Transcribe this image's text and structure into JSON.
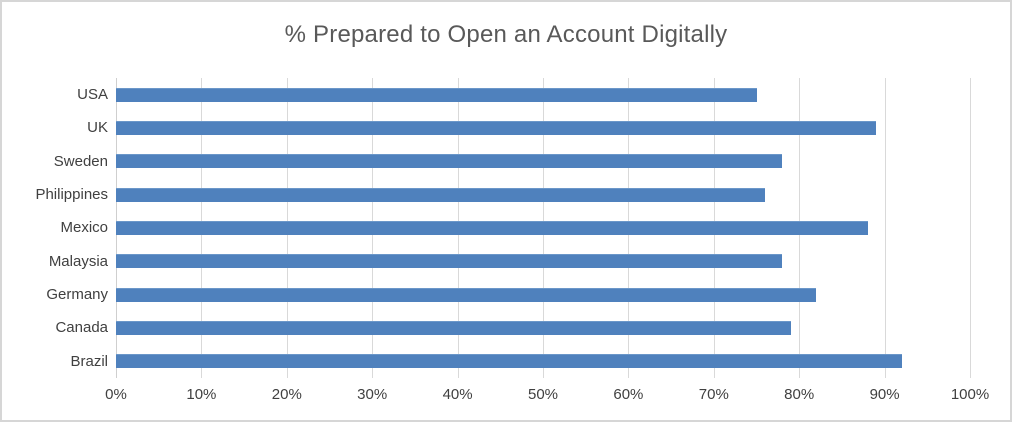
{
  "chart_data": {
    "type": "bar",
    "orientation": "horizontal",
    "title": "% Prepared to Open an Account Digitally",
    "categories": [
      "USA",
      "UK",
      "Sweden",
      "Philippines",
      "Mexico",
      "Malaysia",
      "Germany",
      "Canada",
      "Brazil"
    ],
    "values": [
      75,
      89,
      78,
      76,
      88,
      78,
      82,
      79,
      92
    ],
    "xlabel": "",
    "ylabel": "",
    "xlim": [
      0,
      100
    ],
    "x_tick_step": 10,
    "x_tick_labels": [
      "0%",
      "10%",
      "20%",
      "30%",
      "40%",
      "50%",
      "60%",
      "70%",
      "80%",
      "90%",
      "100%"
    ],
    "grid": "vertical",
    "legend": "none",
    "colors": {
      "bar": "#4f81bd",
      "bar_highlight": "#6b97c9",
      "gridline": "#d9d9d9",
      "axis_line": "#cfcfcf",
      "title_text": "#595959",
      "tick_text": "#404040",
      "background": "#ffffff",
      "frame_border": "#d6d6d6"
    }
  }
}
